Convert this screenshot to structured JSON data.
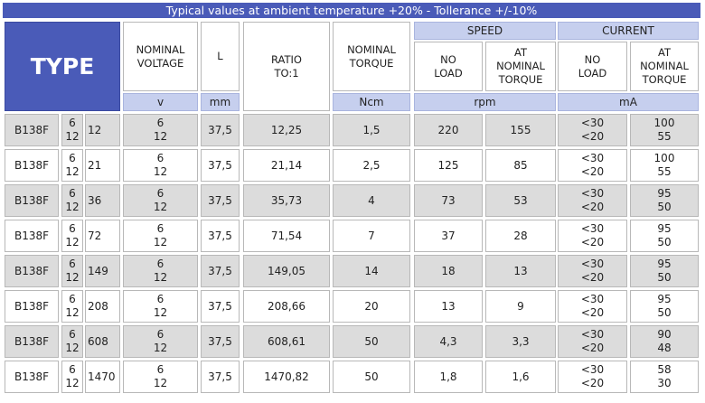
{
  "banner": "Typical values at ambient temperature +20% - Tollerance +/-10%",
  "headers": {
    "type": "TYPE",
    "nominal_voltage": "NOMINAL\nVOLTAGE",
    "l": "L",
    "ratio": "RATIO\nTO:1",
    "nominal_torque": "NOMINAL\nTORQUE",
    "speed": "SPEED",
    "current": "CURRENT",
    "no_load": "NO\nLOAD",
    "at_nominal_torque": "AT\nNOMINAL\nTORQUE"
  },
  "units": {
    "voltage": "v",
    "l": "mm",
    "torque": "Ncm",
    "speed": "rpm",
    "current": "mA"
  },
  "rows": [
    {
      "model": "B138F",
      "volts": "6\n12",
      "code": "12",
      "voltage": "6\n12",
      "l": "37,5",
      "ratio": "12,25",
      "torque": "1,5",
      "speed_no_load": "220",
      "speed_at_torque": "155",
      "current_no_load": "<30\n<20",
      "current_at_torque": "100\n55"
    },
    {
      "model": "B138F",
      "volts": "6\n12",
      "code": "21",
      "voltage": "6\n12",
      "l": "37,5",
      "ratio": "21,14",
      "torque": "2,5",
      "speed_no_load": "125",
      "speed_at_torque": "85",
      "current_no_load": "<30\n<20",
      "current_at_torque": "100\n55"
    },
    {
      "model": "B138F",
      "volts": "6\n12",
      "code": "36",
      "voltage": "6\n12",
      "l": "37,5",
      "ratio": "35,73",
      "torque": "4",
      "speed_no_load": "73",
      "speed_at_torque": "53",
      "current_no_load": "<30\n<20",
      "current_at_torque": "95\n50"
    },
    {
      "model": "B138F",
      "volts": "6\n12",
      "code": "72",
      "voltage": "6\n12",
      "l": "37,5",
      "ratio": "71,54",
      "torque": "7",
      "speed_no_load": "37",
      "speed_at_torque": "28",
      "current_no_load": "<30\n<20",
      "current_at_torque": "95\n50"
    },
    {
      "model": "B138F",
      "volts": "6\n12",
      "code": "149",
      "voltage": "6\n12",
      "l": "37,5",
      "ratio": "149,05",
      "torque": "14",
      "speed_no_load": "18",
      "speed_at_torque": "13",
      "current_no_load": "<30\n<20",
      "current_at_torque": "95\n50"
    },
    {
      "model": "B138F",
      "volts": "6\n12",
      "code": "208",
      "voltage": "6\n12",
      "l": "37,5",
      "ratio": "208,66",
      "torque": "20",
      "speed_no_load": "13",
      "speed_at_torque": "9",
      "current_no_load": "<30\n<20",
      "current_at_torque": "95\n50"
    },
    {
      "model": "B138F",
      "volts": "6\n12",
      "code": "608",
      "voltage": "6\n12",
      "l": "37,5",
      "ratio": "608,61",
      "torque": "50",
      "speed_no_load": "4,3",
      "speed_at_torque": "3,3",
      "current_no_load": "<30\n<20",
      "current_at_torque": "90\n48"
    },
    {
      "model": "B138F",
      "volts": "6\n12",
      "code": "1470",
      "voltage": "6\n12",
      "l": "37,5",
      "ratio": "1470,82",
      "torque": "50",
      "speed_no_load": "1,8",
      "speed_at_torque": "1,6",
      "current_no_load": "<30\n<20",
      "current_at_torque": "58\n30"
    }
  ]
}
